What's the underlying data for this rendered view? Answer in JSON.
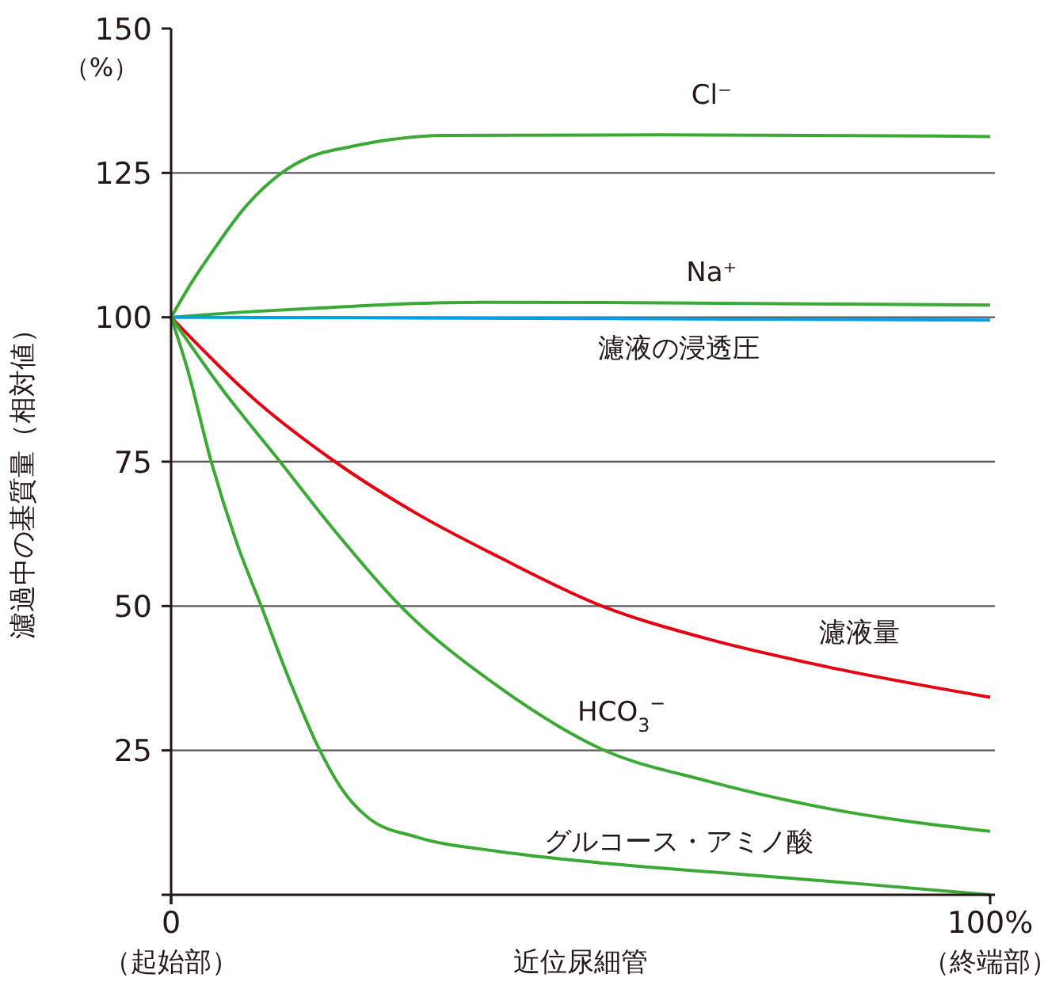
{
  "chart_data": {
    "type": "line",
    "xlabel": "近位尿細管",
    "ylabel": "濾過中の基質量（相対値）",
    "annotations": [
      "（%）"
    ],
    "xlim": [
      0,
      100
    ],
    "xticks": [
      {
        "value": 0,
        "label": "0\n（起始部）"
      },
      {
        "value": 100,
        "label": "100%\n（終端部）"
      }
    ],
    "ylim": [
      0,
      150
    ],
    "yticks": [
      {
        "value": 0,
        "label": null
      },
      25,
      50,
      75,
      100,
      125,
      150
    ],
    "grid": "y",
    "marker": "none",
    "line_style": "solid",
    "series": [
      {
        "name": "Cl⁻",
        "color": "#3aaa35",
        "x": [
          0,
          2.5,
          5.1,
          9,
          13.5,
          17,
          21.8,
          27,
          33,
          60,
          100
        ],
        "values": [
          100,
          106,
          111.5,
          119,
          125,
          127.8,
          129.5,
          130.8,
          131.5,
          131.6,
          131.3
        ]
      },
      {
        "name": "Na⁺",
        "color": "#3aaa35",
        "x": [
          0,
          10,
          18,
          28,
          38,
          60,
          100
        ],
        "values": [
          100,
          101,
          101.6,
          102.3,
          102.6,
          102.5,
          102.1
        ]
      },
      {
        "name": "濾液の浸透圧",
        "color": "#00a0e9",
        "x": [
          0,
          50,
          100
        ],
        "values": [
          100,
          99.8,
          99.5
        ]
      },
      {
        "name": "濾液量",
        "color": "#e60012",
        "x": [
          0,
          10,
          20,
          30,
          40,
          52.6,
          65,
          80,
          100
        ],
        "values": [
          100,
          86,
          75,
          66,
          58.5,
          50,
          44.5,
          39.5,
          34.2
        ]
      },
      {
        "name": "HCO$_{3}$$^{−}$",
        "color": "#3aaa35",
        "x": [
          0,
          6,
          13.3,
          20,
          28,
          40,
          52.6,
          65.5,
          80,
          100
        ],
        "values": [
          100,
          88,
          75,
          63,
          50,
          36,
          25.2,
          19.7,
          15,
          11
        ]
      },
      {
        "name": "グルコース・アミノ酸",
        "color": "#3aaa35",
        "x": [
          0,
          2,
          4.9,
          8,
          11,
          14.5,
          18.1,
          21,
          24.2,
          30,
          40,
          52.6,
          70,
          85,
          100
        ],
        "values": [
          100,
          91,
          75,
          61,
          50,
          37,
          25.2,
          18,
          13.2,
          10,
          7.5,
          5.5,
          3.5,
          1.8,
          0
        ]
      }
    ]
  }
}
